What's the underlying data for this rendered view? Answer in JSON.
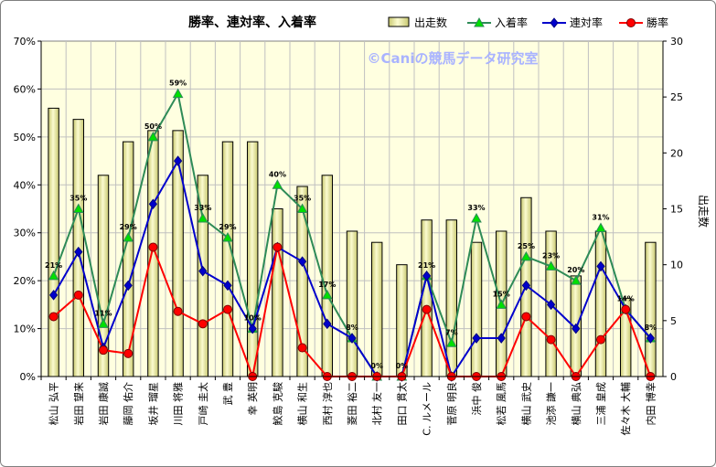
{
  "chart_data": {
    "type": "bar+line",
    "title": "勝率、連対率、入着率",
    "watermark": "©Caniの競馬データ研究室",
    "categories": [
      "松山 弘平",
      "岩田 望来",
      "岩田 康誠",
      "藤岡 佑介",
      "坂井 瑠星",
      "川田 将雅",
      "戸崎 圭太",
      "武 豊",
      "幸 英明",
      "鮫島 克駿",
      "横山 和生",
      "西村 淳也",
      "菱田 裕二",
      "北村 友一",
      "田口 貫太",
      "C. ルメール",
      "菅原 明良",
      "浜中 俊",
      "松若 風馬",
      "横山 武史",
      "池添 謙一",
      "横山 典弘",
      "三浦 皇成",
      "佐々木 大輔",
      "内田 博幸"
    ],
    "left_axis": {
      "min": 0,
      "max": 0.7,
      "step": 0.1,
      "tick_labels": [
        "0%",
        "10%",
        "20%",
        "30%",
        "40%",
        "50%",
        "60%",
        "70%"
      ]
    },
    "right_axis": {
      "label": "出走数",
      "min": 0,
      "max": 30,
      "step": 5,
      "tick_labels": [
        "0",
        "5",
        "10",
        "15",
        "20",
        "25",
        "30"
      ]
    },
    "legend": {
      "placement": "top-right",
      "order": [
        "出走数",
        "入着率",
        "連対率",
        "勝率"
      ]
    },
    "series": [
      {
        "name": "出走数",
        "kind": "bar",
        "axis": "right",
        "color": "#f0f0a8",
        "values": [
          24,
          23,
          18,
          21,
          22,
          22,
          18,
          21,
          21,
          15,
          17,
          18,
          13,
          12,
          10,
          14,
          14,
          12,
          13,
          16,
          13,
          9,
          13,
          7,
          12
        ]
      },
      {
        "name": "入着率",
        "kind": "line",
        "axis": "left",
        "color": "#2e8b57",
        "values": [
          0.21,
          0.35,
          0.11,
          0.29,
          0.5,
          0.59,
          0.33,
          0.29,
          0.1,
          0.4,
          0.35,
          0.17,
          0.08,
          0.0,
          0.0,
          0.21,
          0.07,
          0.33,
          0.15,
          0.25,
          0.23,
          0.2,
          0.31,
          0.14,
          0.08
        ],
        "value_labels": [
          "21%",
          "35%",
          "11%",
          "29%",
          "50%",
          "59%",
          "33%",
          "29%",
          "10%",
          "40%",
          "35%",
          "17%",
          "8%",
          "0%",
          "0%",
          "21%",
          "7%",
          "33%",
          "15%",
          "25%",
          "23%",
          "20%",
          "31%",
          "14%",
          "8%"
        ]
      },
      {
        "name": "連対率",
        "kind": "line",
        "axis": "left",
        "color": "#0000cc",
        "values": [
          0.17,
          0.26,
          0.06,
          0.19,
          0.36,
          0.45,
          0.22,
          0.19,
          0.1,
          0.27,
          0.24,
          0.11,
          0.08,
          0.0,
          0.0,
          0.21,
          0.0,
          0.08,
          0.08,
          0.19,
          0.15,
          0.1,
          0.23,
          0.14,
          0.08
        ]
      },
      {
        "name": "勝率",
        "kind": "line",
        "axis": "left",
        "color": "#ff0000",
        "values": [
          0.125,
          0.17,
          0.055,
          0.048,
          0.27,
          0.136,
          0.11,
          0.14,
          0.0,
          0.27,
          0.06,
          0.0,
          0.0,
          0.0,
          0.0,
          0.14,
          0.0,
          0.0,
          0.0,
          0.125,
          0.077,
          0.0,
          0.077,
          0.14,
          0.0
        ]
      }
    ]
  }
}
